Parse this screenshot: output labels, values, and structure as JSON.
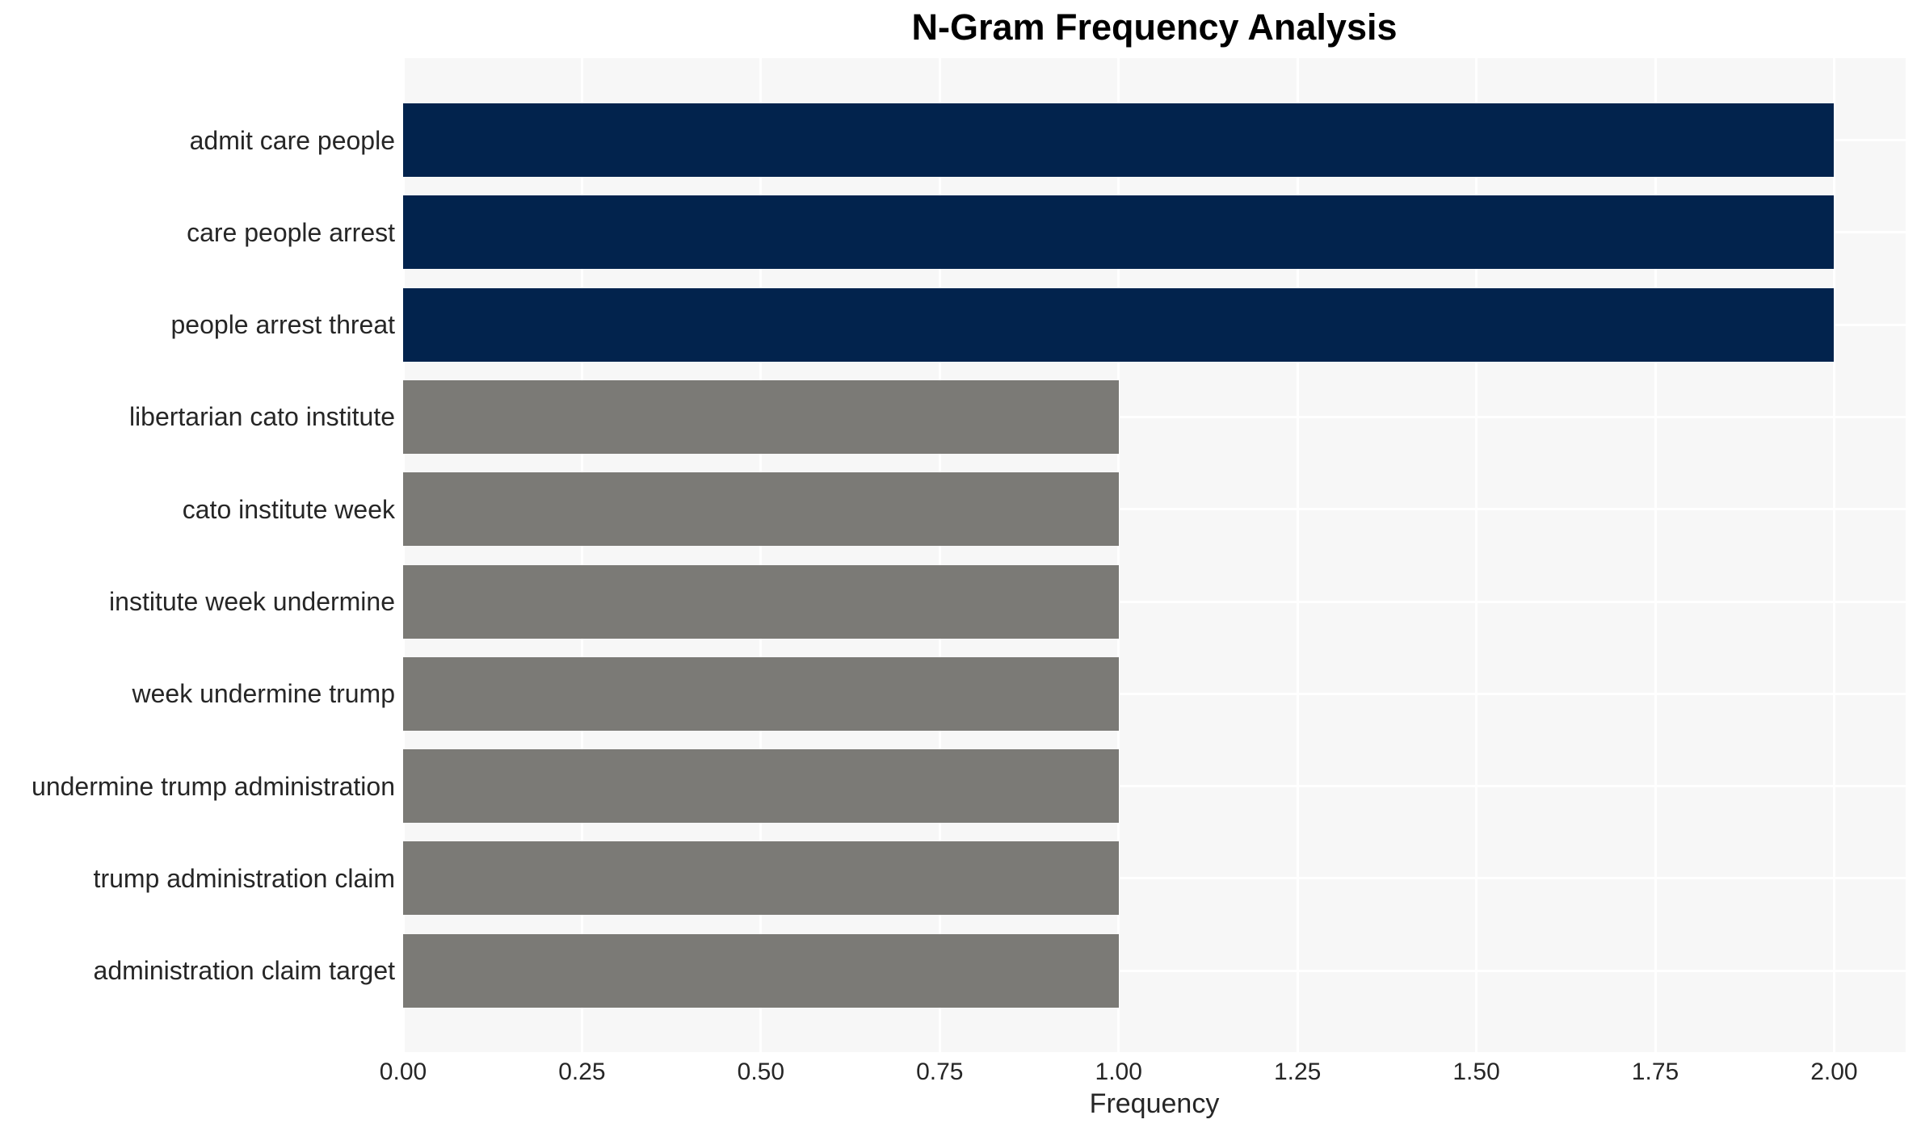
{
  "chart_data": {
    "type": "bar",
    "orientation": "horizontal",
    "title": "N-Gram Frequency Analysis",
    "xlabel": "Frequency",
    "ylabel": "",
    "categories": [
      "admit care people",
      "care people arrest",
      "people arrest threat",
      "libertarian cato institute",
      "cato institute week",
      "institute week undermine",
      "week undermine trump",
      "undermine trump administration",
      "trump administration claim",
      "administration claim target"
    ],
    "values": [
      2,
      2,
      2,
      1,
      1,
      1,
      1,
      1,
      1,
      1
    ],
    "bar_colors": [
      "#02234d",
      "#02234d",
      "#02234d",
      "#7b7a76",
      "#7b7a76",
      "#7b7a76",
      "#7b7a76",
      "#7b7a76",
      "#7b7a76",
      "#7b7a76"
    ],
    "xlim": [
      0,
      2.1
    ],
    "xticks": {
      "values": [
        0,
        0.25,
        0.5,
        0.75,
        1.0,
        1.25,
        1.5,
        1.75,
        2.0
      ],
      "labels": [
        "0.00",
        "0.25",
        "0.50",
        "0.75",
        "1.00",
        "1.25",
        "1.50",
        "1.75",
        "2.00"
      ]
    },
    "grid": true,
    "legend": false,
    "colors": {
      "plot_background": "#f7f7f7",
      "figure_background": "#ffffff",
      "grid_line": "#ffffff",
      "tick_text": "#262626",
      "title_text": "#000000"
    }
  }
}
